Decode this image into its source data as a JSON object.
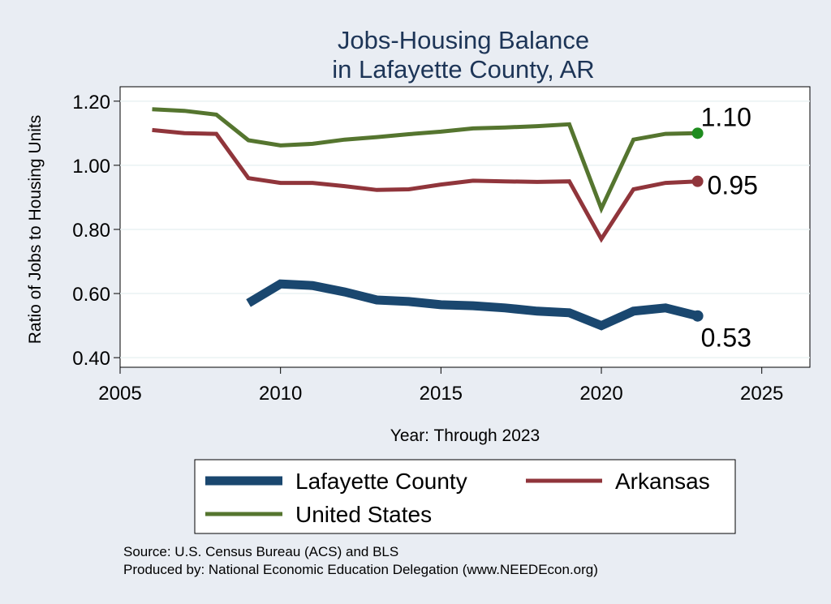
{
  "chart_data": {
    "type": "line",
    "title": [
      "Jobs-Housing Balance",
      "in Lafayette County, AR"
    ],
    "xlabel": "Year: Through 2023",
    "ylabel": "Ratio of Jobs to Housing Units",
    "xlim": [
      2005,
      2026.5
    ],
    "ylim": [
      0.37,
      1.245
    ],
    "x_ticks": [
      2005,
      2010,
      2015,
      2020,
      2025
    ],
    "y_ticks": [
      1.2,
      1.0,
      0.8,
      0.6,
      0.4
    ],
    "y_tick_labels": [
      "1.20",
      "1.00",
      "0.80",
      "0.60",
      "0.40"
    ],
    "grid": true,
    "legend_position": "bottom",
    "series": [
      {
        "name": "Lafayette County",
        "color": "#1a476f",
        "x": [
          2009,
          2010,
          2011,
          2012,
          2013,
          2014,
          2015,
          2016,
          2017,
          2018,
          2019,
          2020,
          2021,
          2022,
          2023
        ],
        "values": [
          0.57,
          0.63,
          0.625,
          0.605,
          0.58,
          0.575,
          0.565,
          0.562,
          0.555,
          0.545,
          0.54,
          0.5,
          0.545,
          0.555,
          0.53
        ],
        "end_label": "0.53"
      },
      {
        "name": "Arkansas",
        "color": "#90353b",
        "x": [
          2006,
          2007,
          2008,
          2009,
          2010,
          2011,
          2012,
          2013,
          2014,
          2015,
          2016,
          2017,
          2018,
          2019,
          2020,
          2021,
          2022,
          2023
        ],
        "values": [
          1.11,
          1.1,
          1.098,
          0.96,
          0.945,
          0.945,
          0.935,
          0.923,
          0.925,
          0.94,
          0.952,
          0.95,
          0.948,
          0.95,
          0.77,
          0.925,
          0.945,
          0.95
        ],
        "end_label": "0.95"
      },
      {
        "name": "United States",
        "color": "#55752f",
        "x": [
          2006,
          2007,
          2008,
          2009,
          2010,
          2011,
          2012,
          2013,
          2014,
          2015,
          2016,
          2017,
          2018,
          2019,
          2020,
          2021,
          2022,
          2023
        ],
        "values": [
          1.175,
          1.17,
          1.158,
          1.078,
          1.062,
          1.067,
          1.08,
          1.088,
          1.097,
          1.105,
          1.115,
          1.118,
          1.122,
          1.128,
          0.865,
          1.08,
          1.098,
          1.1
        ],
        "end_label": "1.10",
        "end_marker_color": "#1e8c1e"
      }
    ],
    "legend": [
      {
        "label": "Lafayette County",
        "color": "#1a476f",
        "width": 11
      },
      {
        "label": "Arkansas",
        "color": "#90353b",
        "width": 5
      },
      {
        "label": "United States",
        "color": "#55752f",
        "width": 5
      }
    ],
    "source": [
      "Source: U.S. Census Bureau (ACS) and BLS",
      "Produced by: National Economic Education Delegation (www.NEEDEcon.org)"
    ]
  }
}
